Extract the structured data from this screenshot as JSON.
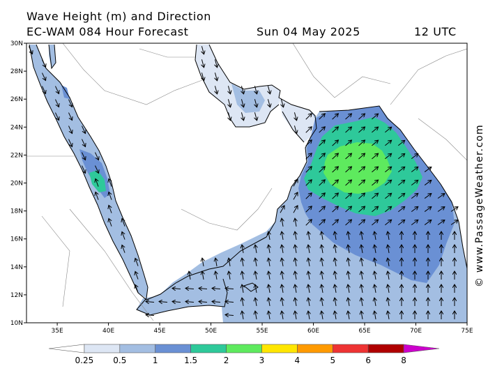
{
  "header": {
    "title": "Wave Height (m) and Direction",
    "model": "EC-WAM 084 Hour Forecast",
    "date": "Sun 04 May 2025",
    "time": "12 UTC"
  },
  "credit": "© www.PassageWeather.com",
  "map": {
    "lon_range": [
      32,
      75
    ],
    "lat_range": [
      10,
      30
    ],
    "lon_ticks": [
      {
        "value": 35,
        "label": "35E"
      },
      {
        "value": 40,
        "label": "40E"
      },
      {
        "value": 45,
        "label": "45E"
      },
      {
        "value": 50,
        "label": "50E"
      },
      {
        "value": 55,
        "label": "55E"
      },
      {
        "value": 60,
        "label": "60E"
      },
      {
        "value": 65,
        "label": "65E"
      },
      {
        "value": 70,
        "label": "70E"
      },
      {
        "value": 75,
        "label": "75E"
      }
    ],
    "lat_ticks": [
      {
        "value": 30,
        "label": "30N"
      },
      {
        "value": 28,
        "label": "28N"
      },
      {
        "value": 26,
        "label": "26N"
      },
      {
        "value": 24,
        "label": "24N"
      },
      {
        "value": 22,
        "label": "22N"
      },
      {
        "value": 20,
        "label": "20N"
      },
      {
        "value": 18,
        "label": "18N"
      },
      {
        "value": 16,
        "label": "16N"
      },
      {
        "value": 14,
        "label": "14N"
      },
      {
        "value": 12,
        "label": "12N"
      },
      {
        "value": 10,
        "label": "10N"
      }
    ]
  },
  "legend": {
    "bins": [
      {
        "min": 0,
        "max": 0.25,
        "color": "#ffffff"
      },
      {
        "min": 0.25,
        "max": 0.5,
        "color": "#dde6f4"
      },
      {
        "min": 0.5,
        "max": 1,
        "color": "#a3bee2"
      },
      {
        "min": 1,
        "max": 1.5,
        "color": "#6a90d4"
      },
      {
        "min": 1.5,
        "max": 2,
        "color": "#2ec99a"
      },
      {
        "min": 2,
        "max": 3,
        "color": "#5eea5e"
      },
      {
        "min": 3,
        "max": 4,
        "color": "#ffe600"
      },
      {
        "min": 4,
        "max": 5,
        "color": "#ff9a00"
      },
      {
        "min": 5,
        "max": 6,
        "color": "#ee3333"
      },
      {
        "min": 6,
        "max": 8,
        "color": "#b00000"
      },
      {
        "min": 8,
        "max": 10,
        "color": "#cc00cc"
      }
    ],
    "labels": [
      "0.25",
      "0.5",
      "1",
      "1.5",
      "2",
      "3",
      "4",
      "5",
      "6",
      "8"
    ]
  }
}
